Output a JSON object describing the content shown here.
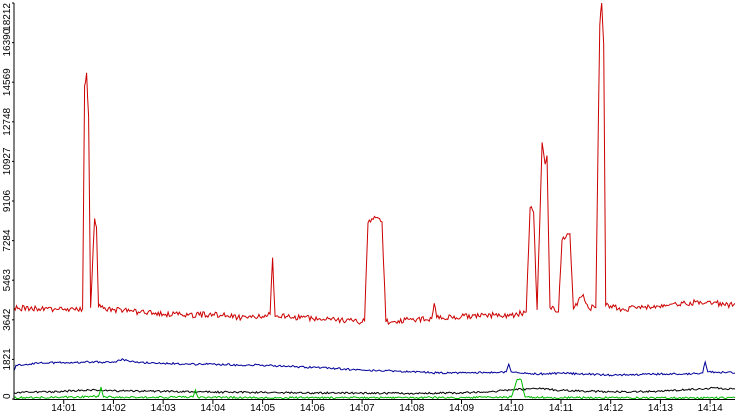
{
  "chart_data": {
    "type": "line",
    "title": "",
    "xlabel": "",
    "ylabel": "",
    "grid": false,
    "legend": "none",
    "x_range_minutes": [
      0.0,
      14.5
    ],
    "x_ticks": [
      {
        "label": "14:01",
        "x": 1.0
      },
      {
        "label": "14:02",
        "x": 2.0
      },
      {
        "label": "14:03",
        "x": 3.0
      },
      {
        "label": "14:04",
        "x": 4.0
      },
      {
        "label": "14:05",
        "x": 5.0
      },
      {
        "label": "14:06",
        "x": 6.0
      },
      {
        "label": "14:07",
        "x": 7.0
      },
      {
        "label": "14:08",
        "x": 8.0
      },
      {
        "label": "14:09",
        "x": 9.0
      },
      {
        "label": "14:10",
        "x": 10.0
      },
      {
        "label": "14:11",
        "x": 11.0
      },
      {
        "label": "14:12",
        "x": 12.0
      },
      {
        "label": "14:13",
        "x": 13.0
      },
      {
        "label": "14:14",
        "x": 14.0
      }
    ],
    "y_range": [
      0,
      18212
    ],
    "y_ticks": [
      "0",
      "1821",
      "3642",
      "5463",
      "7284",
      "9106",
      "10927",
      "12748",
      "14569",
      "16390",
      "18212"
    ],
    "y_tick_values": [
      0,
      1821,
      3642,
      5463,
      7284,
      9106,
      10927,
      12748,
      14569,
      16390,
      18212
    ],
    "series": [
      {
        "color": "#cc0000",
        "points": [
          [
            0.0,
            4200
          ],
          [
            0.5,
            4150
          ],
          [
            1.0,
            4100
          ],
          [
            1.38,
            4150
          ],
          [
            1.42,
            14400
          ],
          [
            1.46,
            15000
          ],
          [
            1.5,
            13000
          ],
          [
            1.54,
            4200
          ],
          [
            1.62,
            8300
          ],
          [
            1.66,
            7900
          ],
          [
            1.7,
            4250
          ],
          [
            2.0,
            4100
          ],
          [
            2.5,
            4000
          ],
          [
            3.0,
            3900
          ],
          [
            3.5,
            3850
          ],
          [
            4.0,
            3900
          ],
          [
            4.5,
            3750
          ],
          [
            5.0,
            3800
          ],
          [
            5.15,
            3900
          ],
          [
            5.2,
            6500
          ],
          [
            5.25,
            3800
          ],
          [
            5.5,
            3800
          ],
          [
            6.0,
            3700
          ],
          [
            6.5,
            3650
          ],
          [
            6.9,
            3550
          ],
          [
            7.05,
            3600
          ],
          [
            7.12,
            8100
          ],
          [
            7.3,
            8350
          ],
          [
            7.4,
            8150
          ],
          [
            7.48,
            3550
          ],
          [
            8.0,
            3650
          ],
          [
            8.4,
            3700
          ],
          [
            8.45,
            4400
          ],
          [
            8.5,
            3750
          ],
          [
            9.0,
            3800
          ],
          [
            9.5,
            3850
          ],
          [
            10.0,
            3850
          ],
          [
            10.3,
            4000
          ],
          [
            10.38,
            8800
          ],
          [
            10.45,
            8600
          ],
          [
            10.52,
            4100
          ],
          [
            10.62,
            11800
          ],
          [
            10.68,
            10800
          ],
          [
            10.72,
            11200
          ],
          [
            10.78,
            4200
          ],
          [
            10.95,
            4000
          ],
          [
            11.02,
            7300
          ],
          [
            11.18,
            7600
          ],
          [
            11.25,
            4150
          ],
          [
            11.45,
            4800
          ],
          [
            11.55,
            4200
          ],
          [
            11.7,
            4200
          ],
          [
            11.78,
            17200
          ],
          [
            11.82,
            18212
          ],
          [
            11.86,
            16300
          ],
          [
            11.9,
            4300
          ],
          [
            12.3,
            4100
          ],
          [
            12.5,
            4200
          ],
          [
            13.0,
            4200
          ],
          [
            13.5,
            4400
          ],
          [
            14.0,
            4500
          ],
          [
            14.3,
            4300
          ],
          [
            14.5,
            4400
          ]
        ]
      },
      {
        "color": "#000099",
        "points": [
          [
            0.0,
            1300
          ],
          [
            0.04,
            1550
          ],
          [
            0.5,
            1650
          ],
          [
            1.0,
            1680
          ],
          [
            1.5,
            1700
          ],
          [
            2.0,
            1690
          ],
          [
            2.2,
            1820
          ],
          [
            2.5,
            1670
          ],
          [
            3.0,
            1650
          ],
          [
            3.5,
            1600
          ],
          [
            4.0,
            1600
          ],
          [
            4.5,
            1560
          ],
          [
            5.0,
            1560
          ],
          [
            5.5,
            1500
          ],
          [
            6.0,
            1450
          ],
          [
            6.5,
            1400
          ],
          [
            7.0,
            1330
          ],
          [
            7.5,
            1300
          ],
          [
            8.0,
            1250
          ],
          [
            8.5,
            1200
          ],
          [
            9.0,
            1200
          ],
          [
            9.5,
            1220
          ],
          [
            9.9,
            1250
          ],
          [
            9.95,
            1600
          ],
          [
            10.0,
            1250
          ],
          [
            10.5,
            1150
          ],
          [
            11.0,
            1180
          ],
          [
            11.5,
            1150
          ],
          [
            12.0,
            1100
          ],
          [
            12.5,
            1120
          ],
          [
            13.0,
            1150
          ],
          [
            13.5,
            1150
          ],
          [
            13.85,
            1200
          ],
          [
            13.9,
            1700
          ],
          [
            13.95,
            1250
          ],
          [
            14.5,
            1200
          ]
        ]
      },
      {
        "color": "#000000",
        "points": [
          [
            0.0,
            300
          ],
          [
            1.0,
            350
          ],
          [
            1.5,
            420
          ],
          [
            2.0,
            380
          ],
          [
            3.0,
            350
          ],
          [
            4.0,
            320
          ],
          [
            5.0,
            300
          ],
          [
            6.0,
            280
          ],
          [
            7.0,
            270
          ],
          [
            8.0,
            260
          ],
          [
            9.0,
            280
          ],
          [
            9.5,
            320
          ],
          [
            10.0,
            420
          ],
          [
            10.5,
            480
          ],
          [
            11.0,
            400
          ],
          [
            12.0,
            330
          ],
          [
            13.0,
            350
          ],
          [
            13.5,
            420
          ],
          [
            14.0,
            500
          ],
          [
            14.5,
            460
          ]
        ]
      },
      {
        "color": "#00bb00",
        "points": [
          [
            0.0,
            60
          ],
          [
            1.0,
            80
          ],
          [
            1.7,
            120
          ],
          [
            1.75,
            550
          ],
          [
            1.8,
            90
          ],
          [
            2.5,
            70
          ],
          [
            3.6,
            90
          ],
          [
            3.65,
            420
          ],
          [
            3.7,
            80
          ],
          [
            5.0,
            60
          ],
          [
            6.5,
            60
          ],
          [
            8.0,
            60
          ],
          [
            9.5,
            70
          ],
          [
            10.0,
            90
          ],
          [
            10.12,
            900
          ],
          [
            10.2,
            880
          ],
          [
            10.28,
            90
          ],
          [
            11.0,
            60
          ],
          [
            12.0,
            60
          ],
          [
            13.0,
            50
          ],
          [
            14.0,
            50
          ],
          [
            14.5,
            50
          ]
        ]
      }
    ]
  }
}
